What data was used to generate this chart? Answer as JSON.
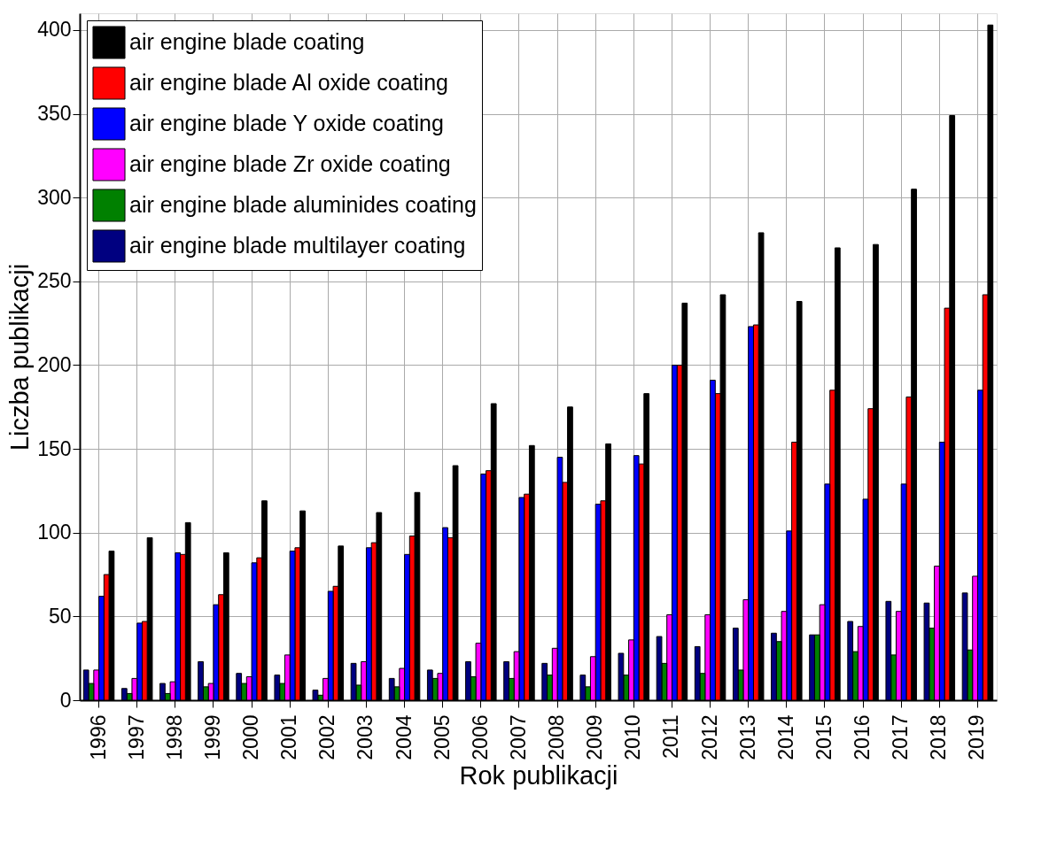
{
  "chart_data": {
    "type": "bar",
    "xlabel": "Rok publikacji",
    "ylabel": "Liczba publikacji",
    "categories": [
      "1996",
      "1997",
      "1998",
      "1999",
      "2000",
      "2001",
      "2002",
      "2003",
      "2004",
      "2005",
      "2006",
      "2007",
      "2008",
      "2009",
      "2010",
      "2011",
      "2012",
      "2013",
      "2014",
      "2015",
      "2016",
      "2017",
      "2018",
      "2019"
    ],
    "series": [
      {
        "name": "air engine blade coating",
        "color": "#000000",
        "values": [
          89,
          97,
          106,
          88,
          119,
          113,
          92,
          112,
          124,
          140,
          177,
          152,
          175,
          153,
          183,
          237,
          242,
          279,
          238,
          270,
          272,
          305,
          349,
          403
        ]
      },
      {
        "name": "air engine blade Al oxide coating",
        "color": "#ff0000",
        "values": [
          75,
          47,
          87,
          63,
          85,
          91,
          68,
          94,
          98,
          97,
          137,
          123,
          130,
          119,
          141,
          200,
          183,
          224,
          154,
          185,
          174,
          181,
          234,
          242
        ]
      },
      {
        "name": "air engine blade Y oxide coating",
        "color": "#0000ff",
        "values": [
          62,
          46,
          88,
          57,
          82,
          89,
          65,
          91,
          87,
          103,
          135,
          121,
          145,
          117,
          146,
          200,
          191,
          223,
          101,
          129,
          120,
          129,
          154,
          185
        ]
      },
      {
        "name": "air engine blade Zr oxide coating",
        "color": "#ff00ff",
        "values": [
          18,
          13,
          11,
          10,
          14,
          27,
          13,
          23,
          19,
          16,
          34,
          29,
          31,
          26,
          36,
          51,
          51,
          60,
          53,
          57,
          44,
          53,
          80,
          74
        ]
      },
      {
        "name": "air engine blade aluminides coating",
        "color": "#008000",
        "values": [
          10,
          4,
          4,
          8,
          10,
          10,
          3,
          9,
          8,
          13,
          14,
          13,
          15,
          8,
          15,
          22,
          16,
          18,
          35,
          39,
          29,
          27,
          43,
          30
        ]
      },
      {
        "name": "air engine blade multilayer coating",
        "color": "#000080",
        "values": [
          18,
          7,
          10,
          23,
          16,
          15,
          6,
          22,
          13,
          18,
          23,
          23,
          22,
          15,
          28,
          38,
          32,
          43,
          40,
          39,
          47,
          59,
          58,
          64
        ]
      }
    ],
    "ylim": [
      0,
      410
    ],
    "yticks": [
      0,
      50,
      100,
      150,
      200,
      250,
      300,
      350,
      400
    ],
    "grid": true,
    "legend": "top left"
  }
}
